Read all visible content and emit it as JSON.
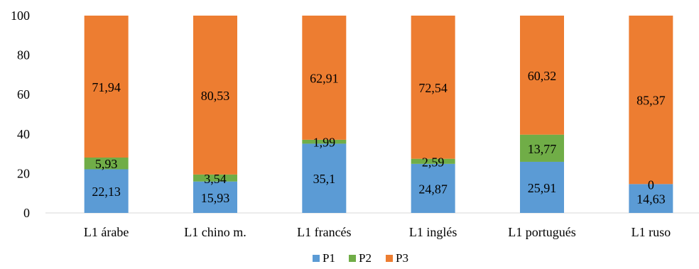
{
  "chart_data": {
    "type": "bar",
    "stacked": true,
    "categories": [
      "L1 árabe",
      "L1 chino m.",
      "L1 francés",
      "L1 inglés",
      "L1 portugués",
      "L1 ruso"
    ],
    "series": [
      {
        "name": "P1",
        "color": "#5B9BD5",
        "values": [
          22.13,
          15.93,
          35.1,
          24.87,
          25.91,
          14.63
        ],
        "labels": [
          "22,13",
          "15,93",
          "35,1",
          "24,87",
          "25,91",
          "14,63"
        ]
      },
      {
        "name": "P2",
        "color": "#70AD47",
        "values": [
          5.93,
          3.54,
          1.99,
          2.59,
          13.77,
          0
        ],
        "labels": [
          "5,93",
          "3,54",
          "1,99",
          "2,59",
          "13,77",
          "0"
        ]
      },
      {
        "name": "P3",
        "color": "#ED7D31",
        "values": [
          71.94,
          80.53,
          62.91,
          72.54,
          60.32,
          85.37
        ],
        "labels": [
          "71,94",
          "80,53",
          "62,91",
          "72,54",
          "60,32",
          "85,37"
        ]
      }
    ],
    "ylim": [
      0,
      100
    ],
    "yticks": [
      0,
      20,
      40,
      60,
      80,
      100
    ],
    "xlabel": "",
    "ylabel": "",
    "title": "",
    "grid": false,
    "legend_position": "bottom"
  }
}
